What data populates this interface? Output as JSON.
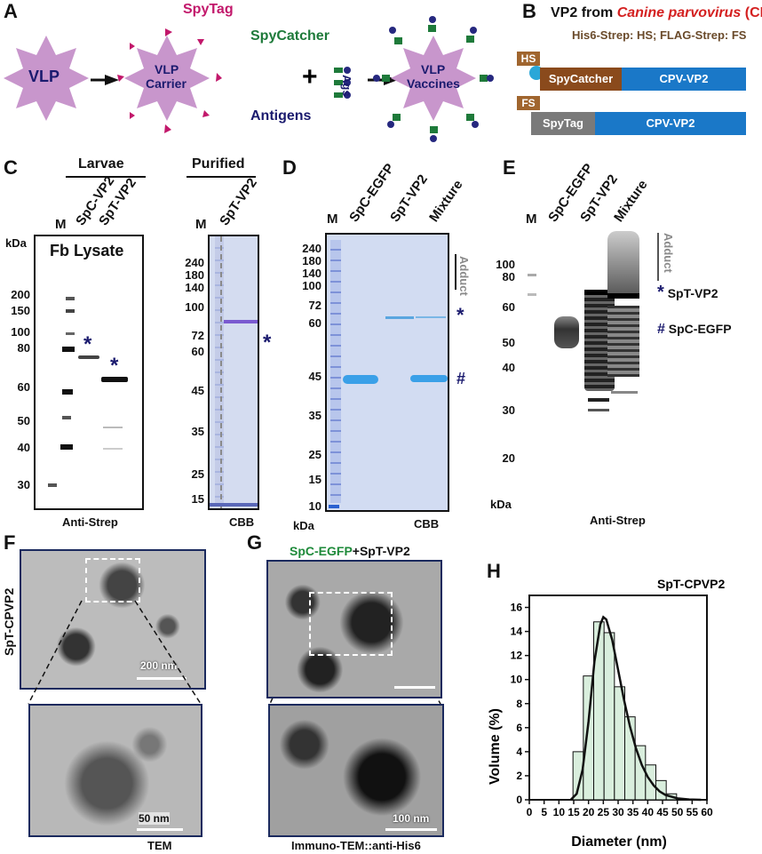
{
  "panel_labels": {
    "A": "A",
    "B": "B",
    "C": "C",
    "D": "D",
    "E": "E",
    "F": "F",
    "G": "G",
    "H": "H"
  },
  "panel_a": {
    "vlp": "VLP",
    "carrier_line1": "VLP",
    "carrier_line2": "Carrier",
    "vaccine_line1": "VLP",
    "vaccine_line2": "Vaccines",
    "spytag": "SpyTag",
    "spycatcher": "SpyCatcher",
    "ags": "Ags",
    "antigens": "Antigens",
    "plus": "+",
    "colors": {
      "vlp_fill": "#c896cc",
      "spytag": "#c2186b",
      "spycatcher": "#1e7a3a",
      "antigen": "#26287f"
    }
  },
  "panel_b": {
    "title_prefix": "VP2 from ",
    "title_virus": "Canine parvovirus",
    "title_suffix": " (CPV)",
    "tags_note": "His6-Strep: HS; FLAG-Strep: FS",
    "construct1": {
      "tag": "HS",
      "domain": "SpyCatcher",
      "protein": "CPV-VP2"
    },
    "construct2": {
      "tag": "FS",
      "domain": "SpyTag",
      "protein": "CPV-VP2"
    },
    "colors": {
      "tag": "#a0652e",
      "spycatcher": "#8a4a1c",
      "vp2": "#1a78c8",
      "spytag": "#7a7a7a"
    }
  },
  "panel_c": {
    "group1": "Larvae",
    "group2": "Purified",
    "lanes_left": [
      "M",
      "SpC-VP2",
      "SpT-VP2"
    ],
    "lanes_right": [
      "M",
      "SpT-VP2"
    ],
    "unit": "kDa",
    "blot_title": "Fb Lysate",
    "mw_left": [
      "200",
      "150",
      "100",
      "80",
      "60",
      "50",
      "40",
      "30"
    ],
    "mw_right": [
      "240",
      "180",
      "140",
      "100",
      "72",
      "60",
      "45",
      "35",
      "25",
      "15"
    ],
    "marker_star": "*",
    "caption_left": "Anti-Strep",
    "caption_right": "CBB"
  },
  "panel_d": {
    "lanes": [
      "M",
      "SpC-EGFP",
      "SpT-VP2",
      "Mixture"
    ],
    "mw": [
      "240",
      "180",
      "140",
      "100",
      "72",
      "60",
      "45",
      "35",
      "25",
      "15",
      "10"
    ],
    "unit": "kDa",
    "adduct": "Adduct",
    "star": "*",
    "hash": "#",
    "caption": "CBB"
  },
  "panel_e": {
    "lanes": [
      "M",
      "SpC-EGFP",
      "SpT-VP2",
      "Mixture"
    ],
    "mw": [
      "100",
      "80",
      "60",
      "50",
      "40",
      "30",
      "20"
    ],
    "unit": "kDa",
    "adduct": "Adduct",
    "legend_star": "*",
    "legend_star_label": "SpT-VP2",
    "legend_hash": "#",
    "legend_hash_label": "SpC-EGFP",
    "caption": "Anti-Strep"
  },
  "panel_f": {
    "side_label": "SpT-CPVP2",
    "scale_top": "200 nm",
    "scale_bottom": "50 nm",
    "caption": "TEM"
  },
  "panel_g": {
    "title_green": "SpC-EGFP",
    "title_rest": "+SpT-VP2",
    "scale_bottom": "100 nm",
    "caption": "Immuno-TEM::anti-His6"
  },
  "chart_data": {
    "type": "bar",
    "title": "SpT-CPVP2",
    "xlabel": "Diameter (nm)",
    "ylabel": "Volume (%)",
    "xlim": [
      0,
      60
    ],
    "ylim": [
      0,
      17
    ],
    "xticks": [
      "0",
      "5",
      "10",
      "15",
      "20",
      "25",
      "30",
      "35",
      "40",
      "45",
      "50",
      "55",
      "60"
    ],
    "yticks": [
      "0",
      "2",
      "4",
      "6",
      "8",
      "10",
      "12",
      "14",
      "16"
    ],
    "bin_width": 3.5,
    "bins": [
      {
        "x": 16.5,
        "value": 4.0
      },
      {
        "x": 20.0,
        "value": 10.3
      },
      {
        "x": 23.5,
        "value": 14.8
      },
      {
        "x": 27.0,
        "value": 13.9
      },
      {
        "x": 30.5,
        "value": 9.4
      },
      {
        "x": 34.0,
        "value": 6.9
      },
      {
        "x": 37.5,
        "value": 4.5
      },
      {
        "x": 41.0,
        "value": 2.9
      },
      {
        "x": 44.5,
        "value": 1.6
      },
      {
        "x": 48.0,
        "value": 0.5
      }
    ],
    "fit_curve": [
      [
        14,
        0
      ],
      [
        16,
        0.5
      ],
      [
        18,
        2.5
      ],
      [
        20,
        6.5
      ],
      [
        22,
        11.5
      ],
      [
        24,
        14.6
      ],
      [
        25,
        15.2
      ],
      [
        26,
        15.0
      ],
      [
        28,
        13.3
      ],
      [
        30,
        10.8
      ],
      [
        32,
        8.3
      ],
      [
        34,
        6.1
      ],
      [
        36,
        4.3
      ],
      [
        38,
        2.9
      ],
      [
        40,
        1.9
      ],
      [
        42,
        1.2
      ],
      [
        44,
        0.7
      ],
      [
        46,
        0.4
      ],
      [
        50,
        0.12
      ],
      [
        54,
        0.03
      ],
      [
        58,
        0
      ]
    ],
    "colors": {
      "bar_fill": "#d9eedd",
      "bar_stroke": "#111111",
      "curve": "#111111"
    }
  }
}
